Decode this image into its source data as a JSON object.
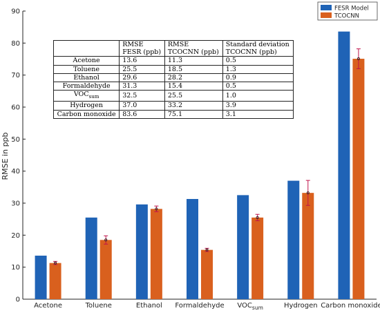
{
  "chart_data": {
    "type": "bar",
    "categories": [
      "Acetone",
      "Toluene",
      "Ethanol",
      "Formaldehyde",
      "VOCsum",
      "Hydrogen",
      "Carbon monoxide"
    ],
    "series": [
      {
        "name": "FESR Model",
        "values": [
          13.6,
          25.5,
          29.6,
          31.3,
          32.5,
          37.0,
          83.6
        ],
        "color": "#1f63b6"
      },
      {
        "name": "TCOCNN",
        "values": [
          11.3,
          18.5,
          28.2,
          15.4,
          25.5,
          33.2,
          75.1
        ],
        "color": "#d9601e",
        "error": [
          0.5,
          1.3,
          0.9,
          0.5,
          1.0,
          3.9,
          3.1
        ]
      }
    ],
    "ylabel": "RMSE in ppb",
    "xlabel": "",
    "ylim": [
      0,
      90
    ],
    "yticks": [
      0,
      10,
      20,
      30,
      40,
      50,
      60,
      70,
      80,
      90
    ],
    "grid": false,
    "legend_position": "top-right",
    "errorbar_color": "#c0134a",
    "table": {
      "headers": [
        "",
        "RMSE\nFESR (ppb)",
        "RMSE\nTCOCNN (ppb)",
        "Standard deviation\nTCOCNN (ppb)"
      ],
      "rows": [
        [
          "Acetone",
          "13.6",
          "11.3",
          "0.5"
        ],
        [
          "Toluene",
          "25.5",
          "18.5",
          "1.3"
        ],
        [
          "Ethanol",
          "29.6",
          "28.2",
          "0.9"
        ],
        [
          "Formaldehyde",
          "31.3",
          "15.4",
          "0.5"
        ],
        [
          "VOCsum",
          "32.5",
          "25.5",
          "1.0"
        ],
        [
          "Hydrogen",
          "37.0",
          "33.2",
          "3.9"
        ],
        [
          "Carbon monoxide",
          "83.6",
          "75.1",
          "3.1"
        ]
      ]
    }
  }
}
